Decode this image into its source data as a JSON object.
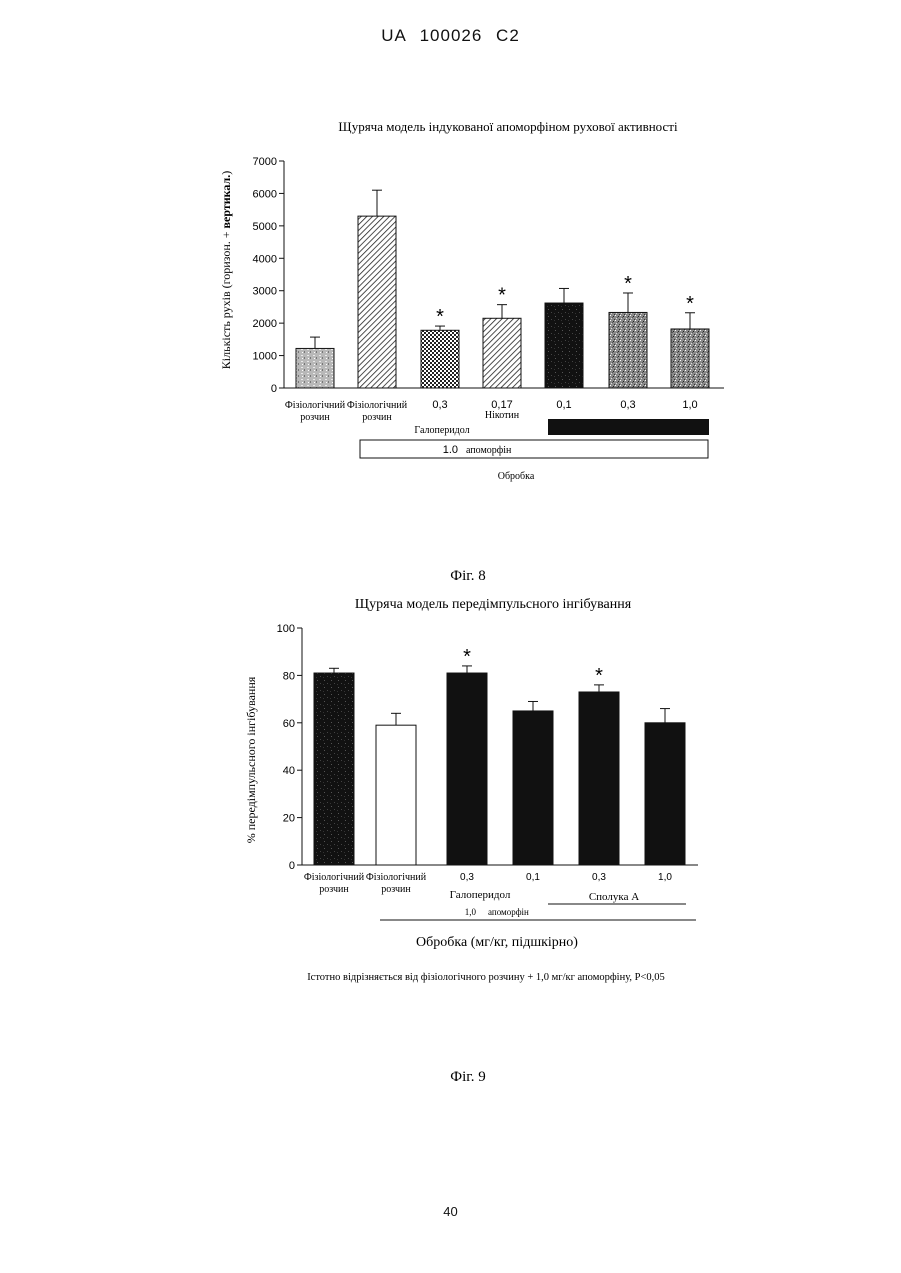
{
  "page": {
    "header": "UA   100026   C2",
    "number": "40"
  },
  "fig8": {
    "caption": "Фіг. 8",
    "chart_data": {
      "type": "bar",
      "title": "Щуряча модель індукованої апоморфіном рухової активності",
      "ylabel_pre": "Кількість рухів (горизон. + ",
      "ylabel_bold": "вертикал.",
      "ylabel_post": ")",
      "xlabel": "Обробка",
      "ylim": [
        0,
        7000
      ],
      "yticks": [
        "0",
        "1000",
        "2000",
        "3000",
        "4000",
        "5000",
        "6000",
        "7000"
      ],
      "categories": [
        "Фізіологічний розчин",
        "Фізіологічний розчин",
        "0,3",
        "0,17",
        "0,1",
        "0,3",
        "1,0"
      ],
      "values": [
        1220,
        5300,
        1780,
        2150,
        2620,
        2330,
        1820
      ],
      "errors": [
        350,
        800,
        130,
        420,
        450,
        600,
        500
      ],
      "significant": [
        false,
        false,
        true,
        true,
        false,
        true,
        true
      ],
      "fills": [
        "gray-mottled",
        "diagonal-hatch",
        "checker",
        "diagonal-hatch",
        "black-mottled",
        "gray-stipple",
        "gray-stipple"
      ],
      "tick_label_lines": [
        [
          "Фізіологічний",
          "розчин"
        ],
        [
          "Фізіологічний",
          "розчин"
        ],
        [
          "0,3"
        ],
        [
          "0,17"
        ],
        [
          "0,1"
        ],
        [
          "0,3"
        ],
        [
          "1,0"
        ]
      ],
      "group_labels": {
        "haloperidol": "Галоперидол",
        "nicotine": "Нікотин",
        "apomorphine_dose": "1.0",
        "apomorphine": "апоморфін"
      },
      "star": "*"
    }
  },
  "fig9": {
    "caption": "Фіг. 9",
    "footnote": "Істотно відрізняється від фізіологічного розчину + 1,0 мг/кг апоморфіну, P<0,05",
    "chart_data": {
      "type": "bar",
      "title": "Щуряча модель передімпульсного інгібування",
      "ylabel": "% передімпульсного інгібування",
      "xlabel": "Обробка (мг/кг, підшкірно)",
      "ylim": [
        0,
        100
      ],
      "yticks": [
        "0",
        "20",
        "40",
        "60",
        "80",
        "100"
      ],
      "categories": [
        "Фізіологічний розчин",
        "Фізіологічний розчин",
        "0,3",
        "0,1",
        "0,3",
        "1,0"
      ],
      "values": [
        81,
        59,
        81,
        65,
        73,
        60
      ],
      "errors": [
        2,
        5,
        3,
        4,
        3,
        6
      ],
      "significant": [
        false,
        false,
        true,
        false,
        true,
        false
      ],
      "fills": [
        "black-mottled",
        "white",
        "black",
        "black",
        "black",
        "black"
      ],
      "tick_label_lines": [
        [
          "Фізіологічний",
          "розчин"
        ],
        [
          "Фізіологічний",
          "розчин"
        ],
        [
          "0,3"
        ],
        [
          "0,1"
        ],
        [
          "0,3"
        ],
        [
          "1,0"
        ]
      ],
      "group_labels": {
        "haloperidol": "Галоперидол",
        "compound": "Сполука А",
        "apomorphine_dose": "1,0",
        "apomorphine": "апоморфін"
      },
      "star": "*"
    }
  }
}
